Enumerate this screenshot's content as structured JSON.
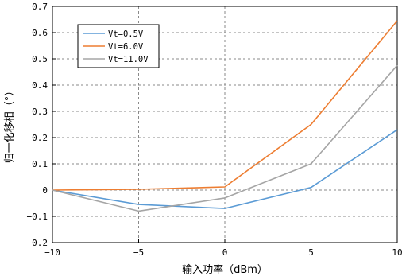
{
  "chart_data": {
    "type": "line",
    "xlabel": "输入功率（dBm）",
    "ylabel": "归一化移相（°）",
    "x": [
      -10,
      -5,
      0,
      5,
      10
    ],
    "xlim": [
      -10,
      10
    ],
    "ylim": [
      -0.2,
      0.7
    ],
    "xticks": [
      -10,
      -5,
      0,
      5,
      10
    ],
    "yticks": [
      -0.2,
      -0.1,
      0,
      0.1,
      0.2,
      0.3,
      0.4,
      0.5,
      0.6,
      0.7
    ],
    "xtick_labels": [
      "−10",
      "−5",
      "0",
      "5",
      "10"
    ],
    "ytick_labels": [
      "−0.2",
      "−0.1",
      "0",
      "0.1",
      "0.2",
      "0.3",
      "0.4",
      "0.5",
      "0.6",
      "0.7"
    ],
    "grid": true,
    "legend_position": "top-left",
    "series": [
      {
        "name": "Vt=0.5V",
        "color": "#5b9bd5",
        "values": [
          0,
          -0.055,
          -0.07,
          0.01,
          0.23
        ]
      },
      {
        "name": "Vt=6.0V",
        "color": "#ed7d31",
        "values": [
          0,
          0.003,
          0.012,
          0.25,
          0.645
        ]
      },
      {
        "name": "Vt=11.0V",
        "color": "#a5a5a5",
        "values": [
          0,
          -0.08,
          -0.03,
          0.1,
          0.475
        ]
      }
    ]
  }
}
